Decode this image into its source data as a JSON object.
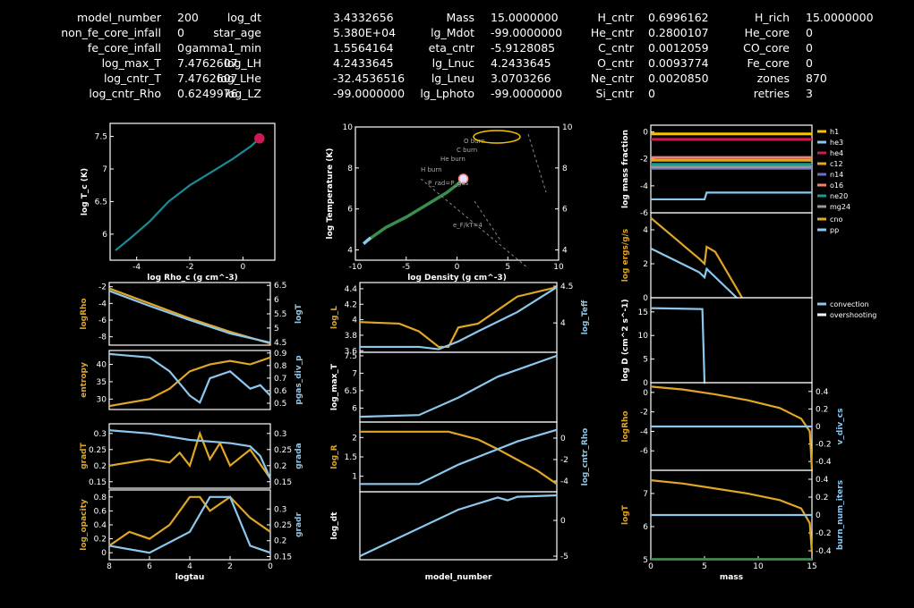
{
  "header": {
    "columns": [
      [
        [
          "model_number",
          "200"
        ],
        [
          "non_fe_core_infall",
          "0"
        ],
        [
          "fe_core_infall",
          "0"
        ],
        [
          "log_max_T",
          "7.4762607"
        ],
        [
          "log_cntr_T",
          "7.4762607"
        ],
        [
          "log_cntr_Rho",
          "0.6249976"
        ]
      ],
      [
        [
          "log_dt",
          "3.4332656"
        ],
        [
          "star_age",
          "5.380E+04"
        ],
        [
          "gamma1_min",
          "1.5564164"
        ],
        [
          "log_LH",
          "4.2433645"
        ],
        [
          "log_LHe",
          "-32.4536516"
        ],
        [
          "log_LZ",
          "-99.0000000"
        ]
      ],
      [
        [
          "Mass",
          "15.0000000"
        ],
        [
          "lg_Mdot",
          "-99.0000000"
        ],
        [
          "eta_cntr",
          "-5.9128085"
        ],
        [
          "lg_Lnuc",
          "4.2433645"
        ],
        [
          "lg_Lneu",
          "3.0703266"
        ],
        [
          "lg_Lphoto",
          "-99.0000000"
        ]
      ],
      [
        [
          "H_cntr",
          "0.6996162"
        ],
        [
          "He_cntr",
          "0.2800107"
        ],
        [
          "C_cntr",
          "0.0012059"
        ],
        [
          "O_cntr",
          "0.0093774"
        ],
        [
          "Ne_cntr",
          "0.0020850"
        ],
        [
          "Si_cntr",
          "0"
        ]
      ],
      [
        [
          "H_rich",
          "15.0000000"
        ],
        [
          "He_core",
          "0"
        ],
        [
          "CO_core",
          "0"
        ],
        [
          "Fe_core",
          "0"
        ],
        [
          "zones",
          "870"
        ],
        [
          "retries",
          "3"
        ]
      ]
    ]
  },
  "colors": {
    "orange": "#e0a626",
    "blue": "#8cc8ee",
    "teal": "#1a8a94",
    "green": "#3a8d4d",
    "magenta": "#cc1a55",
    "axis": "#ffffff",
    "grey": "#999999"
  },
  "chart_data": [
    {
      "id": "hr",
      "type": "line",
      "xlabel": "log Rho_c (g cm^-3)",
      "ylabel": "log T_c (K)",
      "xlim": [
        -5,
        1.2
      ],
      "ylim": [
        5.6,
        7.7
      ],
      "xticks": [
        -4,
        -2,
        0
      ],
      "yticks": [
        6,
        6.5,
        7,
        7.5
      ],
      "series": [
        {
          "color": "teal",
          "x": [
            -4.8,
            -4.2,
            -3.5,
            -2.8,
            -2,
            -1.2,
            -0.4,
            0.3,
            0.62
          ],
          "y": [
            5.75,
            5.95,
            6.2,
            6.5,
            6.75,
            6.95,
            7.15,
            7.35,
            7.47
          ]
        }
      ],
      "marker": {
        "x": 0.62,
        "y": 7.47
      }
    },
    {
      "id": "trho",
      "type": "line",
      "xlabel": "log Density (g cm^-3)",
      "ylabel": "log Temperature (K)",
      "xlim": [
        -10,
        10
      ],
      "ylim": [
        3.5,
        10
      ],
      "xticks": [
        -10,
        -5,
        0,
        5,
        10
      ],
      "yticks": [
        4,
        6,
        8,
        10
      ],
      "y2ticks": [
        4,
        6,
        8,
        10
      ],
      "labels": [
        "O burn",
        "C burn",
        "He burn",
        "H burn",
        "P_rad=P_gas",
        "e_F/kT=4"
      ],
      "series": [
        {
          "color": "green",
          "x": [
            -9,
            -7,
            -5,
            -3,
            -1,
            0.3
          ],
          "y": [
            4.4,
            5.1,
            5.6,
            6.2,
            6.8,
            7.3
          ]
        },
        {
          "color": "blue",
          "x": [
            -9.2,
            -8.5
          ],
          "y": [
            4.3,
            4.6
          ]
        }
      ],
      "marker": {
        "x": 0.62,
        "y": 7.47
      }
    },
    {
      "id": "abund",
      "type": "line",
      "ylabel": "log mass fraction",
      "xlim": [
        0,
        15
      ],
      "ylim": [
        -6,
        0.5
      ],
      "yticks": [
        0,
        -2,
        -4,
        -6
      ],
      "legend": [
        "h1",
        "he3",
        "he4",
        "c12",
        "n14",
        "o16",
        "ne20",
        "mg24"
      ],
      "legend_colors": [
        "#f6c500",
        "#8cc8ee",
        "#cc1a55",
        "#e0a626",
        "#6e6ec8",
        "#f08070",
        "#1a9a90",
        "#999999"
      ],
      "series": [
        {
          "name": "h1",
          "color": "#f6c500",
          "y": -0.15
        },
        {
          "name": "he4",
          "color": "#cc1a55",
          "y": -0.55
        },
        {
          "name": "c12",
          "color": "#e0a626",
          "y": -2.1
        },
        {
          "name": "o16",
          "color": "#f08070",
          "y": -1.9
        },
        {
          "name": "n14",
          "color": "#6e6ec8",
          "y": -2.7
        },
        {
          "name": "ne20",
          "color": "#1a9a90",
          "y": -2.4
        },
        {
          "name": "mg24",
          "color": "#999999",
          "y": -2.6
        },
        {
          "name": "he3",
          "color": "#8cc8ee",
          "x": [
            0,
            5,
            5.2,
            15
          ],
          "y": [
            -5,
            -5,
            -4.5,
            -4.5
          ]
        }
      ]
    },
    {
      "id": "eps",
      "type": "line",
      "ylabel": "log ergs/g/s",
      "xlim": [
        0,
        15
      ],
      "ylim": [
        0,
        5
      ],
      "yticks": [
        0,
        2,
        4
      ],
      "legend": [
        "cno",
        "pp"
      ],
      "series": [
        {
          "name": "cno",
          "color": "orange",
          "x": [
            0,
            4.5,
            5,
            5.2,
            6,
            8.5
          ],
          "y": [
            4.7,
            2.3,
            2.0,
            3.0,
            2.7,
            0
          ]
        },
        {
          "name": "pp",
          "color": "blue",
          "x": [
            0,
            4.5,
            5,
            5.2,
            8
          ],
          "y": [
            2.9,
            1.5,
            1.2,
            1.7,
            0
          ]
        }
      ]
    },
    {
      "id": "mix",
      "type": "line",
      "ylabel": "log D (cm^2 s^-1)",
      "xlim": [
        0,
        15
      ],
      "ylim": [
        0,
        18
      ],
      "yticks": [
        0,
        5,
        10,
        15
      ],
      "legend": [
        "convection",
        "overshooting"
      ],
      "series": [
        {
          "name": "convection",
          "color": "blue",
          "x": [
            0,
            4.8,
            5,
            5.1
          ],
          "y": [
            15.8,
            15.6,
            0,
            0
          ]
        }
      ]
    },
    {
      "id": "rhovdiv",
      "type": "line",
      "ylabel": "logRho",
      "y2label": "v_div_cs",
      "xlim": [
        0,
        15
      ],
      "ylim": [
        -8,
        1
      ],
      "y2lim": [
        -0.5,
        0.5
      ],
      "yticks": [
        0,
        -2,
        -4,
        -6
      ],
      "y2ticks": [
        0.4,
        0.2,
        0,
        -0.2,
        -0.4
      ],
      "series": [
        {
          "color": "orange",
          "x": [
            0,
            3,
            6,
            9,
            12,
            14,
            14.8,
            15
          ],
          "y": [
            0.6,
            0.3,
            -0.2,
            -0.8,
            -1.6,
            -2.7,
            -4,
            -8
          ]
        },
        {
          "color": "blue",
          "x": [
            0,
            15
          ],
          "y2": [
            0,
            0
          ]
        }
      ]
    },
    {
      "id": "tburn",
      "type": "line",
      "xlabel": "mass",
      "ylabel": "logT",
      "y2label": "burn_num_iters",
      "xlim": [
        0,
        15
      ],
      "ylim": [
        5,
        7.7
      ],
      "y2lim": [
        -0.5,
        0.5
      ],
      "xticks": [
        0,
        5,
        10,
        15
      ],
      "yticks": [
        5,
        6,
        7
      ],
      "y2ticks": [
        0.4,
        0.2,
        0,
        -0.2,
        -0.4
      ],
      "series": [
        {
          "color": "orange",
          "x": [
            0,
            3,
            6,
            9,
            12,
            14,
            14.8,
            15
          ],
          "y": [
            7.4,
            7.3,
            7.15,
            7.0,
            6.8,
            6.55,
            6.1,
            5.2
          ]
        },
        {
          "color": "blue",
          "x": [
            0,
            15
          ],
          "y": [
            6.35,
            6.35
          ]
        },
        {
          "color": "green",
          "x": [
            0,
            15
          ],
          "y": [
            5.02,
            5.02
          ]
        }
      ]
    },
    {
      "id": "lrho",
      "type": "line",
      "ylabel": "logRho",
      "y2label": "logT",
      "xlim": [
        8,
        0
      ],
      "ylim": [
        -9,
        -1.5
      ],
      "y2lim": [
        4.4,
        6.6
      ],
      "yticks": [
        -2,
        -4,
        -6,
        -8
      ],
      "y2ticks": [
        6.5,
        6,
        5.5,
        5,
        4.5
      ],
      "series": [
        {
          "color": "orange",
          "x": [
            8,
            6,
            4,
            2,
            0
          ],
          "y": [
            -2.2,
            -4,
            -5.8,
            -7.4,
            -8.8
          ]
        },
        {
          "color": "blue",
          "x": [
            8,
            6,
            4,
            2,
            0
          ],
          "y": [
            -2.5,
            -4.3,
            -6.0,
            -7.6,
            -8.7
          ]
        }
      ]
    },
    {
      "id": "lent",
      "type": "line",
      "ylabel": "entropy",
      "y2label": "pgas_div_p",
      "xlim": [
        8,
        0
      ],
      "ylim": [
        27,
        44
      ],
      "y2lim": [
        0.45,
        0.92
      ],
      "yticks": [
        40,
        35,
        30
      ],
      "y2ticks": [
        0.9,
        0.8,
        0.7,
        0.6,
        0.5
      ],
      "series": [
        {
          "color": "orange",
          "x": [
            8,
            6,
            5,
            4,
            3,
            2,
            1,
            0
          ],
          "y": [
            28,
            30,
            33,
            38,
            40,
            41,
            40,
            42
          ]
        },
        {
          "color": "blue",
          "x": [
            8,
            6,
            5,
            4,
            3.5,
            3,
            2,
            1,
            0.5,
            0
          ],
          "y": [
            43,
            42,
            38,
            31,
            29,
            36,
            38,
            33,
            34,
            31
          ]
        }
      ]
    },
    {
      "id": "lgrad",
      "type": "line",
      "ylabel": "gradT",
      "y2label": "grada",
      "xlim": [
        8,
        0
      ],
      "ylim": [
        0.13,
        0.33
      ],
      "y2lim": [
        0.13,
        0.33
      ],
      "yticks": [
        0.3,
        0.25,
        0.2,
        0.15
      ],
      "y2ticks": [
        0.3,
        0.25,
        0.2,
        0.15
      ],
      "series": [
        {
          "color": "orange",
          "x": [
            8,
            6,
            5,
            4.5,
            4,
            3.5,
            3,
            2.5,
            2,
            1,
            0
          ],
          "y": [
            0.2,
            0.22,
            0.21,
            0.24,
            0.2,
            0.3,
            0.22,
            0.27,
            0.2,
            0.25,
            0.16
          ]
        },
        {
          "color": "blue",
          "x": [
            8,
            6,
            4,
            2,
            1,
            0.5,
            0
          ],
          "y": [
            0.31,
            0.3,
            0.28,
            0.27,
            0.26,
            0.23,
            0.16
          ]
        }
      ]
    },
    {
      "id": "lop",
      "type": "line",
      "xlabel": "logtau",
      "ylabel": "log_opacity",
      "y2label": "gradr",
      "xlim": [
        8,
        0
      ],
      "ylim": [
        -0.1,
        0.9
      ],
      "y2lim": [
        0.14,
        0.36
      ],
      "xticks": [
        8,
        6,
        4,
        2,
        0
      ],
      "yticks": [
        0.8,
        0.6,
        0.4,
        0.2,
        0
      ],
      "y2ticks": [
        0.3,
        0.25,
        0.2,
        0.15
      ],
      "series": [
        {
          "color": "orange",
          "x": [
            8,
            7,
            6,
            5,
            4,
            3.5,
            3,
            2,
            1,
            0.5,
            0
          ],
          "y": [
            0.1,
            0.3,
            0.2,
            0.4,
            0.8,
            0.8,
            0.6,
            0.8,
            0.5,
            0.4,
            0.3
          ]
        },
        {
          "color": "blue",
          "x": [
            8,
            6,
            4,
            3,
            2,
            1,
            0.5,
            0
          ],
          "y": [
            0.1,
            0,
            0.3,
            0.8,
            0.8,
            0.1,
            0.05,
            0
          ]
        }
      ]
    },
    {
      "id": "mlum",
      "type": "line",
      "ylabel": "log_L",
      "y2label": "log_Teff",
      "ylim": [
        3.58,
        4.48
      ],
      "y2lim": [
        3.6,
        4.55
      ],
      "yticks": [
        3.6,
        3.8,
        4,
        4.2,
        4.4
      ],
      "y2ticks": [
        4.5,
        4
      ],
      "series": [
        {
          "color": "orange",
          "x": [
            0,
            40,
            60,
            80,
            90,
            100,
            120,
            160,
            200
          ],
          "y": [
            3.97,
            3.95,
            3.85,
            3.65,
            3.65,
            3.9,
            3.95,
            4.3,
            4.42
          ]
        },
        {
          "color": "blue",
          "x": [
            0,
            60,
            80,
            100,
            120,
            160,
            200
          ],
          "y": [
            3.65,
            3.65,
            3.62,
            3.72,
            3.85,
            4.1,
            4.42
          ]
        }
      ]
    },
    {
      "id": "mtmax",
      "type": "line",
      "ylabel": "log_max_T",
      "ylim": [
        5.6,
        7.6
      ],
      "yticks": [
        7.5,
        7,
        6.5,
        6
      ],
      "series": [
        {
          "color": "blue",
          "x": [
            0,
            60,
            100,
            140,
            200
          ],
          "y": [
            5.75,
            5.8,
            6.3,
            6.9,
            7.5
          ]
        }
      ]
    },
    {
      "id": "mrho",
      "type": "line",
      "ylabel": "log_R",
      "y2label": "log_cntr_Rho",
      "ylim": [
        0.6,
        2.4
      ],
      "y2lim": [
        -5,
        1.5
      ],
      "yticks": [
        1,
        1.5,
        2
      ],
      "y2ticks": [
        0,
        -2,
        -4
      ],
      "series": [
        {
          "color": "orange",
          "x": [
            0,
            90,
            120,
            140,
            180,
            200
          ],
          "y": [
            2.15,
            2.15,
            1.95,
            1.7,
            1.15,
            0.8
          ]
        },
        {
          "color": "blue",
          "x": [
            0,
            60,
            100,
            160,
            200
          ],
          "y": [
            0.8,
            0.8,
            1.3,
            1.9,
            2.2
          ]
        }
      ]
    },
    {
      "id": "mdt",
      "type": "line",
      "xlabel": "model_number",
      "ylabel": "log_dt",
      "ylim": [
        -5.5,
        4
      ],
      "y2ticks": [
        0,
        -5
      ],
      "series": [
        {
          "color": "blue",
          "x": [
            0,
            100,
            140,
            150,
            160,
            200
          ],
          "y": [
            -5,
            1.5,
            3.2,
            2.8,
            3.3,
            3.5
          ]
        }
      ]
    }
  ]
}
